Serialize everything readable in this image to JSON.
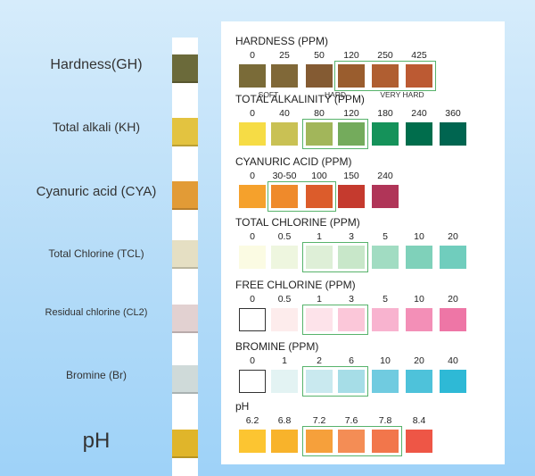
{
  "left_labels": [
    {
      "text": "Hardness(GH)",
      "size": 16
    },
    {
      "text": "Total alkali (KH)",
      "size": 14
    },
    {
      "text": "Cyanuric acid (CYA)",
      "size": 15
    },
    {
      "text": "Total Chlorine (TCL)",
      "size": 12
    },
    {
      "text": "Residual chlorine (CL2)",
      "size": 11
    },
    {
      "text": "Bromine (Br)",
      "size": 12
    },
    {
      "text": "pH",
      "size": 24
    }
  ],
  "strip_colors": [
    "#6b6a3a",
    "#e3c340",
    "#e29b36",
    "#e5dfc3",
    "#e2d1d1",
    "#cfdad9",
    "#e0b52a"
  ],
  "sections": [
    {
      "title": "HARDNESS (PPM)",
      "values": [
        "0",
        "25",
        "50",
        "120",
        "250",
        "425"
      ],
      "colors": [
        "#7a6b38",
        "#806838",
        "#845b33",
        "#9a5d2e",
        "#b05e31",
        "#bc5a33"
      ],
      "highlight": [
        3,
        5
      ],
      "sublabels": [
        {
          "text": "SOFT",
          "index": 0.5
        },
        {
          "text": "HARD",
          "index": 2.5
        },
        {
          "text": "VERY HARD",
          "index": 4.5
        }
      ]
    },
    {
      "title": "TOTAL ALKALINITY (PPM)",
      "values": [
        "0",
        "40",
        "80",
        "120",
        "180",
        "240",
        "360"
      ],
      "colors": [
        "#f6dc45",
        "#c9c154",
        "#a2b65a",
        "#74ab5c",
        "#15925a",
        "#006d4c",
        "#006550"
      ],
      "highlight": [
        2,
        3
      ]
    },
    {
      "title": "CYANURIC ACID (PPM)",
      "values": [
        "0",
        "30-50",
        "100",
        "150",
        "240"
      ],
      "colors": [
        "#f5a12c",
        "#ef8a2b",
        "#dc5c2b",
        "#c53a2e",
        "#b03558"
      ],
      "highlight": [
        1,
        2
      ]
    },
    {
      "title": "TOTAL CHLORINE (PPM)",
      "values": [
        "0",
        "0.5",
        "1",
        "3",
        "5",
        "10",
        "20"
      ],
      "colors": [
        "#fbfbe3",
        "#eef6df",
        "#deefd7",
        "#c8e7c9",
        "#a1dcc2",
        "#7fd1ba",
        "#70cdbd"
      ],
      "highlight": [
        2,
        3
      ]
    },
    {
      "title": "FREE CHLORINE (PPM)",
      "values": [
        "0",
        "0.5",
        "1",
        "3",
        "5",
        "10",
        "20"
      ],
      "colors": [
        "#ffffff",
        "#fdecec",
        "#fde3ea",
        "#fbc7d9",
        "#f8b3cf",
        "#f38fb7",
        "#ee76a6"
      ],
      "highlight": [
        2,
        3
      ]
    },
    {
      "title": "BROMINE (PPM)",
      "values": [
        "0",
        "1",
        "2",
        "6",
        "10",
        "20",
        "40"
      ],
      "colors": [
        "#ffffff",
        "#e3f3f3",
        "#c9e9ef",
        "#a6dde7",
        "#70cbe0",
        "#4ec2da",
        "#2eb9d6"
      ],
      "highlight": [
        2,
        3
      ]
    },
    {
      "title": "pH",
      "values": [
        "6.2",
        "6.8",
        "7.2",
        "7.6",
        "7.8",
        "8.4"
      ],
      "colors": [
        "#fcc531",
        "#f8b32b",
        "#f6a03b",
        "#f48d55",
        "#f2764b",
        "#ee5646"
      ],
      "highlight": [
        2,
        4
      ]
    }
  ],
  "highlight_color": "#57b36b"
}
